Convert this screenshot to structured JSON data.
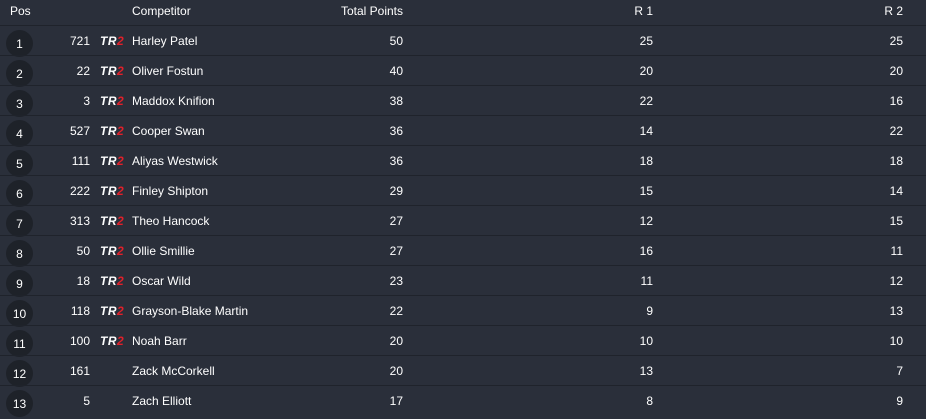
{
  "headers": {
    "pos": "Pos",
    "competitor": "Competitor",
    "total": "Total Points",
    "r1": "R 1",
    "r2": "R 2"
  },
  "logo": {
    "text_a": "TR",
    "text_b": "2",
    "accent": "#e0202a"
  },
  "rows": [
    {
      "pos": "1",
      "num": "721",
      "logo": true,
      "name": "Harley Patel",
      "total": "50",
      "r1": "25",
      "r2": "25"
    },
    {
      "pos": "2",
      "num": "22",
      "logo": true,
      "name": "Oliver Fostun",
      "total": "40",
      "r1": "20",
      "r2": "20"
    },
    {
      "pos": "3",
      "num": "3",
      "logo": true,
      "name": "Maddox Knifion",
      "total": "38",
      "r1": "22",
      "r2": "16"
    },
    {
      "pos": "4",
      "num": "527",
      "logo": true,
      "name": "Cooper Swan",
      "total": "36",
      "r1": "14",
      "r2": "22"
    },
    {
      "pos": "5",
      "num": "111",
      "logo": true,
      "name": "Aliyas Westwick",
      "total": "36",
      "r1": "18",
      "r2": "18"
    },
    {
      "pos": "6",
      "num": "222",
      "logo": true,
      "name": "Finley Shipton",
      "total": "29",
      "r1": "15",
      "r2": "14"
    },
    {
      "pos": "7",
      "num": "313",
      "logo": true,
      "name": "Theo Hancock",
      "total": "27",
      "r1": "12",
      "r2": "15"
    },
    {
      "pos": "8",
      "num": "50",
      "logo": true,
      "name": "Ollie Smillie",
      "total": "27",
      "r1": "16",
      "r2": "11"
    },
    {
      "pos": "9",
      "num": "18",
      "logo": true,
      "name": "Oscar Wild",
      "total": "23",
      "r1": "11",
      "r2": "12"
    },
    {
      "pos": "10",
      "num": "118",
      "logo": true,
      "name": "Grayson-Blake Martin",
      "total": "22",
      "r1": "9",
      "r2": "13"
    },
    {
      "pos": "11",
      "num": "100",
      "logo": true,
      "name": "Noah Barr",
      "total": "20",
      "r1": "10",
      "r2": "10"
    },
    {
      "pos": "12",
      "num": "161",
      "logo": false,
      "name": "Zack McCorkell",
      "total": "20",
      "r1": "13",
      "r2": "7"
    },
    {
      "pos": "13",
      "num": "5",
      "logo": false,
      "name": "Zach Elliott",
      "total": "17",
      "r1": "8",
      "r2": "9"
    }
  ]
}
